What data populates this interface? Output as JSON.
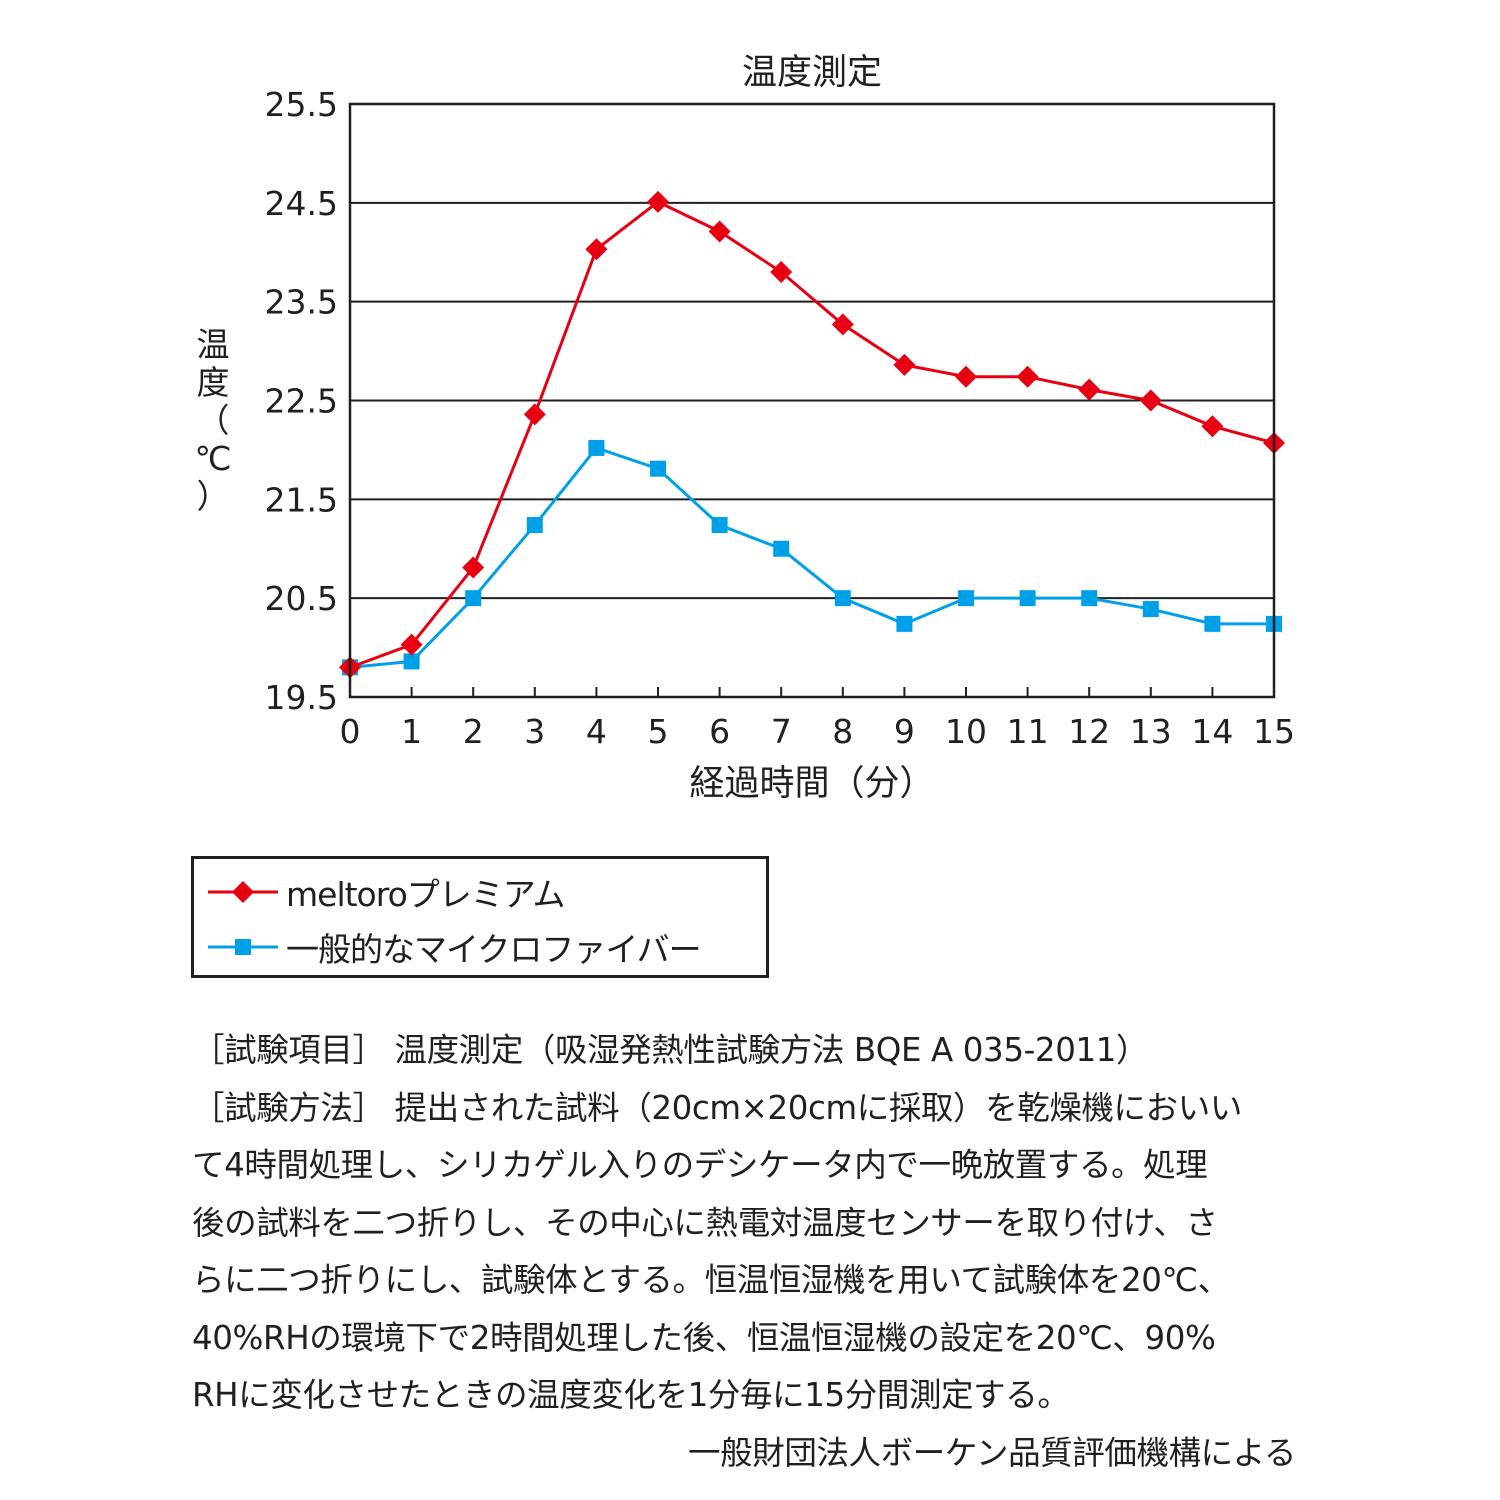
{
  "chart_data": {
    "type": "line",
    "title": "温度測定",
    "xlabel": "経過時間（分）",
    "ylabel_chars": [
      "温",
      "度",
      "（",
      "℃",
      "）"
    ],
    "x": [
      0,
      1,
      2,
      3,
      4,
      5,
      6,
      7,
      8,
      9,
      10,
      11,
      12,
      13,
      14,
      15
    ],
    "xticks": [
      "0",
      "1",
      "2",
      "3",
      "4",
      "5",
      "6",
      "7",
      "8",
      "9",
      "10",
      "11",
      "12",
      "13",
      "14",
      "15"
    ],
    "yticks": [
      "19.5",
      "20.5",
      "21.5",
      "22.5",
      "23.5",
      "24.5",
      "25.5"
    ],
    "ylim": [
      19.5,
      25.5
    ],
    "xlim": [
      0,
      15
    ],
    "grid": "horizontal",
    "legend_position": "below chart",
    "series": [
      {
        "name": "meltoroプレミアム",
        "color": "#e60012",
        "marker": "diamond",
        "values": [
          19.8,
          20.03,
          20.81,
          22.36,
          24.03,
          24.51,
          24.21,
          23.8,
          23.27,
          22.86,
          22.74,
          22.74,
          22.61,
          22.5,
          22.24,
          22.07
        ]
      },
      {
        "name": "一般的なマイクロファイバー",
        "color": "#00a0e9",
        "marker": "square",
        "values": [
          19.8,
          19.86,
          20.5,
          21.24,
          22.02,
          21.81,
          21.24,
          21.0,
          20.5,
          20.24,
          20.5,
          20.5,
          20.5,
          20.39,
          20.24,
          20.24
        ]
      }
    ]
  },
  "notes": {
    "lines": [
      "［試験項目］ 温度測定（吸湿発熱性試験方法 BQE A 035-2011）",
      "［試験方法］ 提出された試料（20cm×20cmに採取）を乾燥機においい",
      "て4時間処理し、シリカゲル入りのデシケータ内で一晩放置する。処理",
      "後の試料を二つ折りし、その中心に熱電対温度センサーを取り付け、さ",
      "らに二つ折りにし、試験体とする。恒温恒湿機を用いて試験体を20℃、",
      "40%RHの環境下で2時間処理した後、恒温恒湿機の設定を20℃、90%",
      "RHに変化させたときの温度変化を1分毎に15分間測定する。"
    ],
    "credit": "一般財団法人ボーケン品質評価機構による"
  }
}
